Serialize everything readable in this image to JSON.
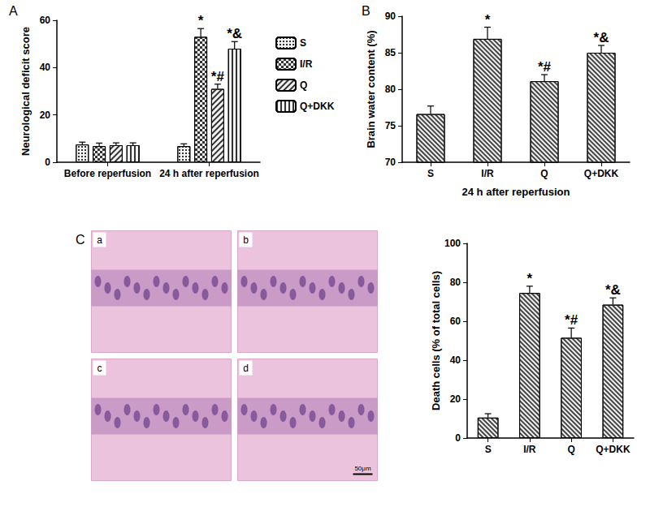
{
  "chart_data": [
    {
      "type": "bar",
      "title": "A",
      "categories": [
        "Before reperfusion",
        "24 h after reperfusion"
      ],
      "y_label": "Neurological deficit score",
      "ylim": [
        0,
        60
      ],
      "yticks": [
        0,
        20,
        40,
        60
      ],
      "grid": false,
      "legend": "right",
      "series": [
        {
          "name": "S",
          "color": "#f2f2f2",
          "values": [
            7.5,
            6.8
          ],
          "errors": [
            1.0,
            1.0
          ],
          "annotations": [
            null,
            null
          ]
        },
        {
          "name": "I/R",
          "color": "#f2f2f2",
          "values": [
            6.8,
            53
          ],
          "errors": [
            1.3,
            3.5
          ],
          "annotations": [
            null,
            "*"
          ]
        },
        {
          "name": "Q",
          "color": "#f2f2f2",
          "values": [
            7.2,
            31
          ],
          "errors": [
            1.0,
            2.0
          ],
          "annotations": [
            null,
            "*#"
          ]
        },
        {
          "name": "Q+DKK",
          "color": "#f2f2f2",
          "values": [
            7.2,
            48
          ],
          "errors": [
            1.0,
            3.0
          ],
          "annotations": [
            null,
            "*&"
          ]
        }
      ]
    },
    {
      "type": "bar",
      "title": "B",
      "categories": [
        "S",
        "I/R",
        "Q",
        "Q+DKK"
      ],
      "x_label": "24 h after reperfusion",
      "y_label": "Brain water content (%)",
      "ylim": [
        70,
        90
      ],
      "yticks": [
        70,
        75,
        80,
        85,
        90
      ],
      "grid": false,
      "color": "#f2f2f2",
      "values": [
        76.6,
        86.9,
        81.1,
        85.0
      ],
      "errors": [
        1.1,
        1.6,
        0.9,
        1.0
      ],
      "annotations": [
        null,
        "*",
        "*#",
        "*&"
      ]
    },
    {
      "type": "bar",
      "title": "C",
      "categories": [
        "S",
        "I/R",
        "Q",
        "Q+DKK"
      ],
      "y_label": "Death cells (% of total cells)",
      "ylim": [
        0,
        100
      ],
      "yticks": [
        0,
        20,
        40,
        60,
        80,
        100
      ],
      "grid": false,
      "color": "#f2f2f2",
      "values": [
        10.5,
        74.5,
        51.5,
        68.5
      ],
      "errors": [
        2.0,
        3.5,
        5.0,
        3.5
      ],
      "annotations": [
        null,
        "*",
        "*#",
        "*&"
      ]
    }
  ],
  "micrographs": {
    "labels": [
      "a",
      "b",
      "c",
      "d"
    ],
    "scale_bar": "50μm"
  }
}
